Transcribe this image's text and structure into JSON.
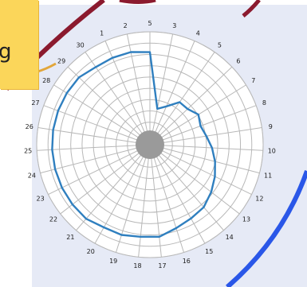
{
  "note": {
    "text": "g",
    "color": "#fbd65a"
  },
  "colors": {
    "panel": "#e6eaf6",
    "grid": "#b8b8b8",
    "series": "#2f7fbf",
    "center": "#9a9a9a",
    "curve_dark": "#8b1a2e",
    "curve_blue": "#2a57e8",
    "curve_gold": "#e2a63a"
  },
  "chart_data": {
    "type": "radar",
    "title": "",
    "radial_rings": 9,
    "spokes": 31,
    "tick_labels": [
      "5",
      "3",
      "4",
      "5",
      "6",
      "7",
      "8",
      "9",
      "10",
      "11",
      "12",
      "13",
      "14",
      "15",
      "16",
      "17",
      "18",
      "19",
      "20",
      "21",
      "22",
      "23",
      "24",
      "25",
      "26",
      "27",
      "28",
      "29",
      "30",
      "1",
      "2"
    ],
    "series": [
      {
        "values": [
          0.8,
          0.25,
          0.3,
          0.4,
          0.4,
          0.45,
          0.42,
          0.45,
          0.5,
          0.55,
          0.6,
          0.65,
          0.7,
          0.72,
          0.75,
          0.8,
          0.8,
          0.82,
          0.82,
          0.85,
          0.85,
          0.85,
          0.85,
          0.85,
          0.85,
          0.85,
          0.85,
          0.85,
          0.82,
          0.82,
          0.82
        ]
      }
    ]
  }
}
